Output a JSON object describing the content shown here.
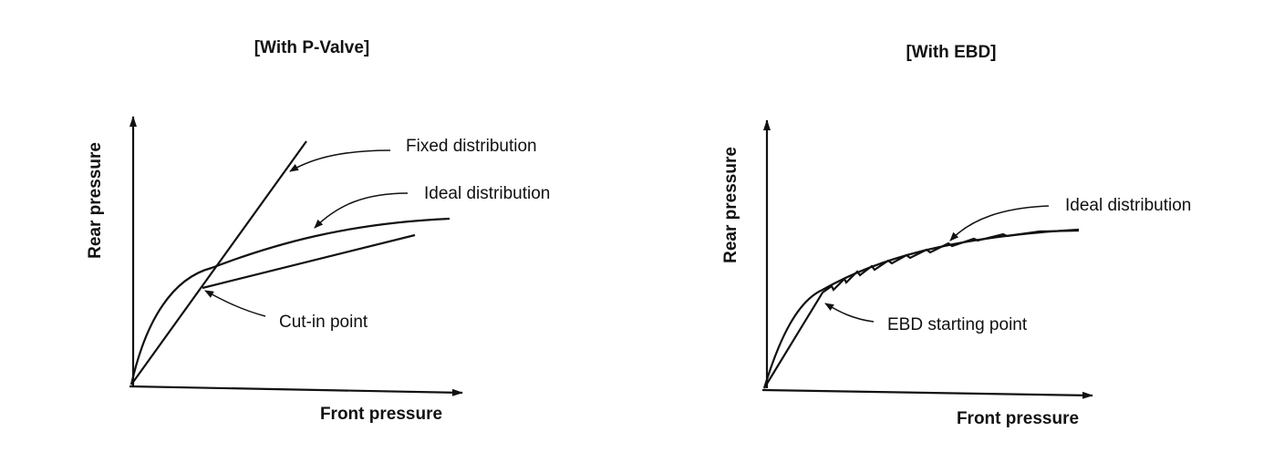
{
  "left_diagram": {
    "title": "[With P-Valve]",
    "x_label": "Front pressure",
    "y_label": "Rear pressure",
    "annotations": {
      "fixed": "Fixed distribution",
      "ideal": "Ideal distribution",
      "cutin": "Cut-in point"
    }
  },
  "right_diagram": {
    "title": "[With EBD]",
    "x_label": "Front pressure",
    "y_label": "Rear pressure",
    "annotations": {
      "ideal": "Ideal distribution",
      "ebd": "EBD starting point"
    }
  }
}
